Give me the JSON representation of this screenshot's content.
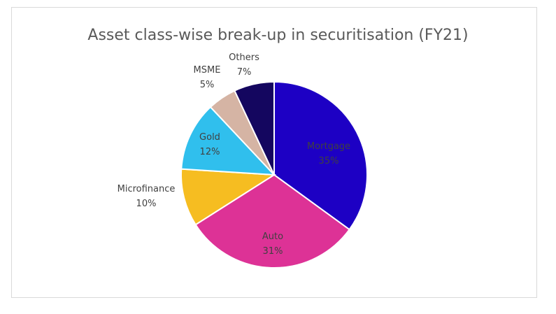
{
  "chart_data": {
    "type": "pie",
    "title": "Asset class-wise break-up in securitisation (FY21)",
    "slices": [
      {
        "label": "Mortgage",
        "value": 35,
        "value_label": "35%",
        "color": "#1d00c4",
        "text_color": "#404040"
      },
      {
        "label": "Auto",
        "value": 31,
        "value_label": "31%",
        "color": "#dd3296",
        "text_color": "#404040"
      },
      {
        "label": "Microfinance",
        "value": 10,
        "value_label": "10%",
        "color": "#f6bd21",
        "text_color": "#404040"
      },
      {
        "label": "Gold",
        "value": 12,
        "value_label": "12%",
        "color": "#30bfed",
        "text_color": "#404040"
      },
      {
        "label": "MSME",
        "value": 5,
        "value_label": "5%",
        "color": "#d5b4a4",
        "text_color": "#404040"
      },
      {
        "label": "Others",
        "value": 7,
        "value_label": "7%",
        "color": "#14065f",
        "text_color": "#404040"
      }
    ],
    "start_angle_deg": 0,
    "direction": "clockwise",
    "legend": "none"
  }
}
